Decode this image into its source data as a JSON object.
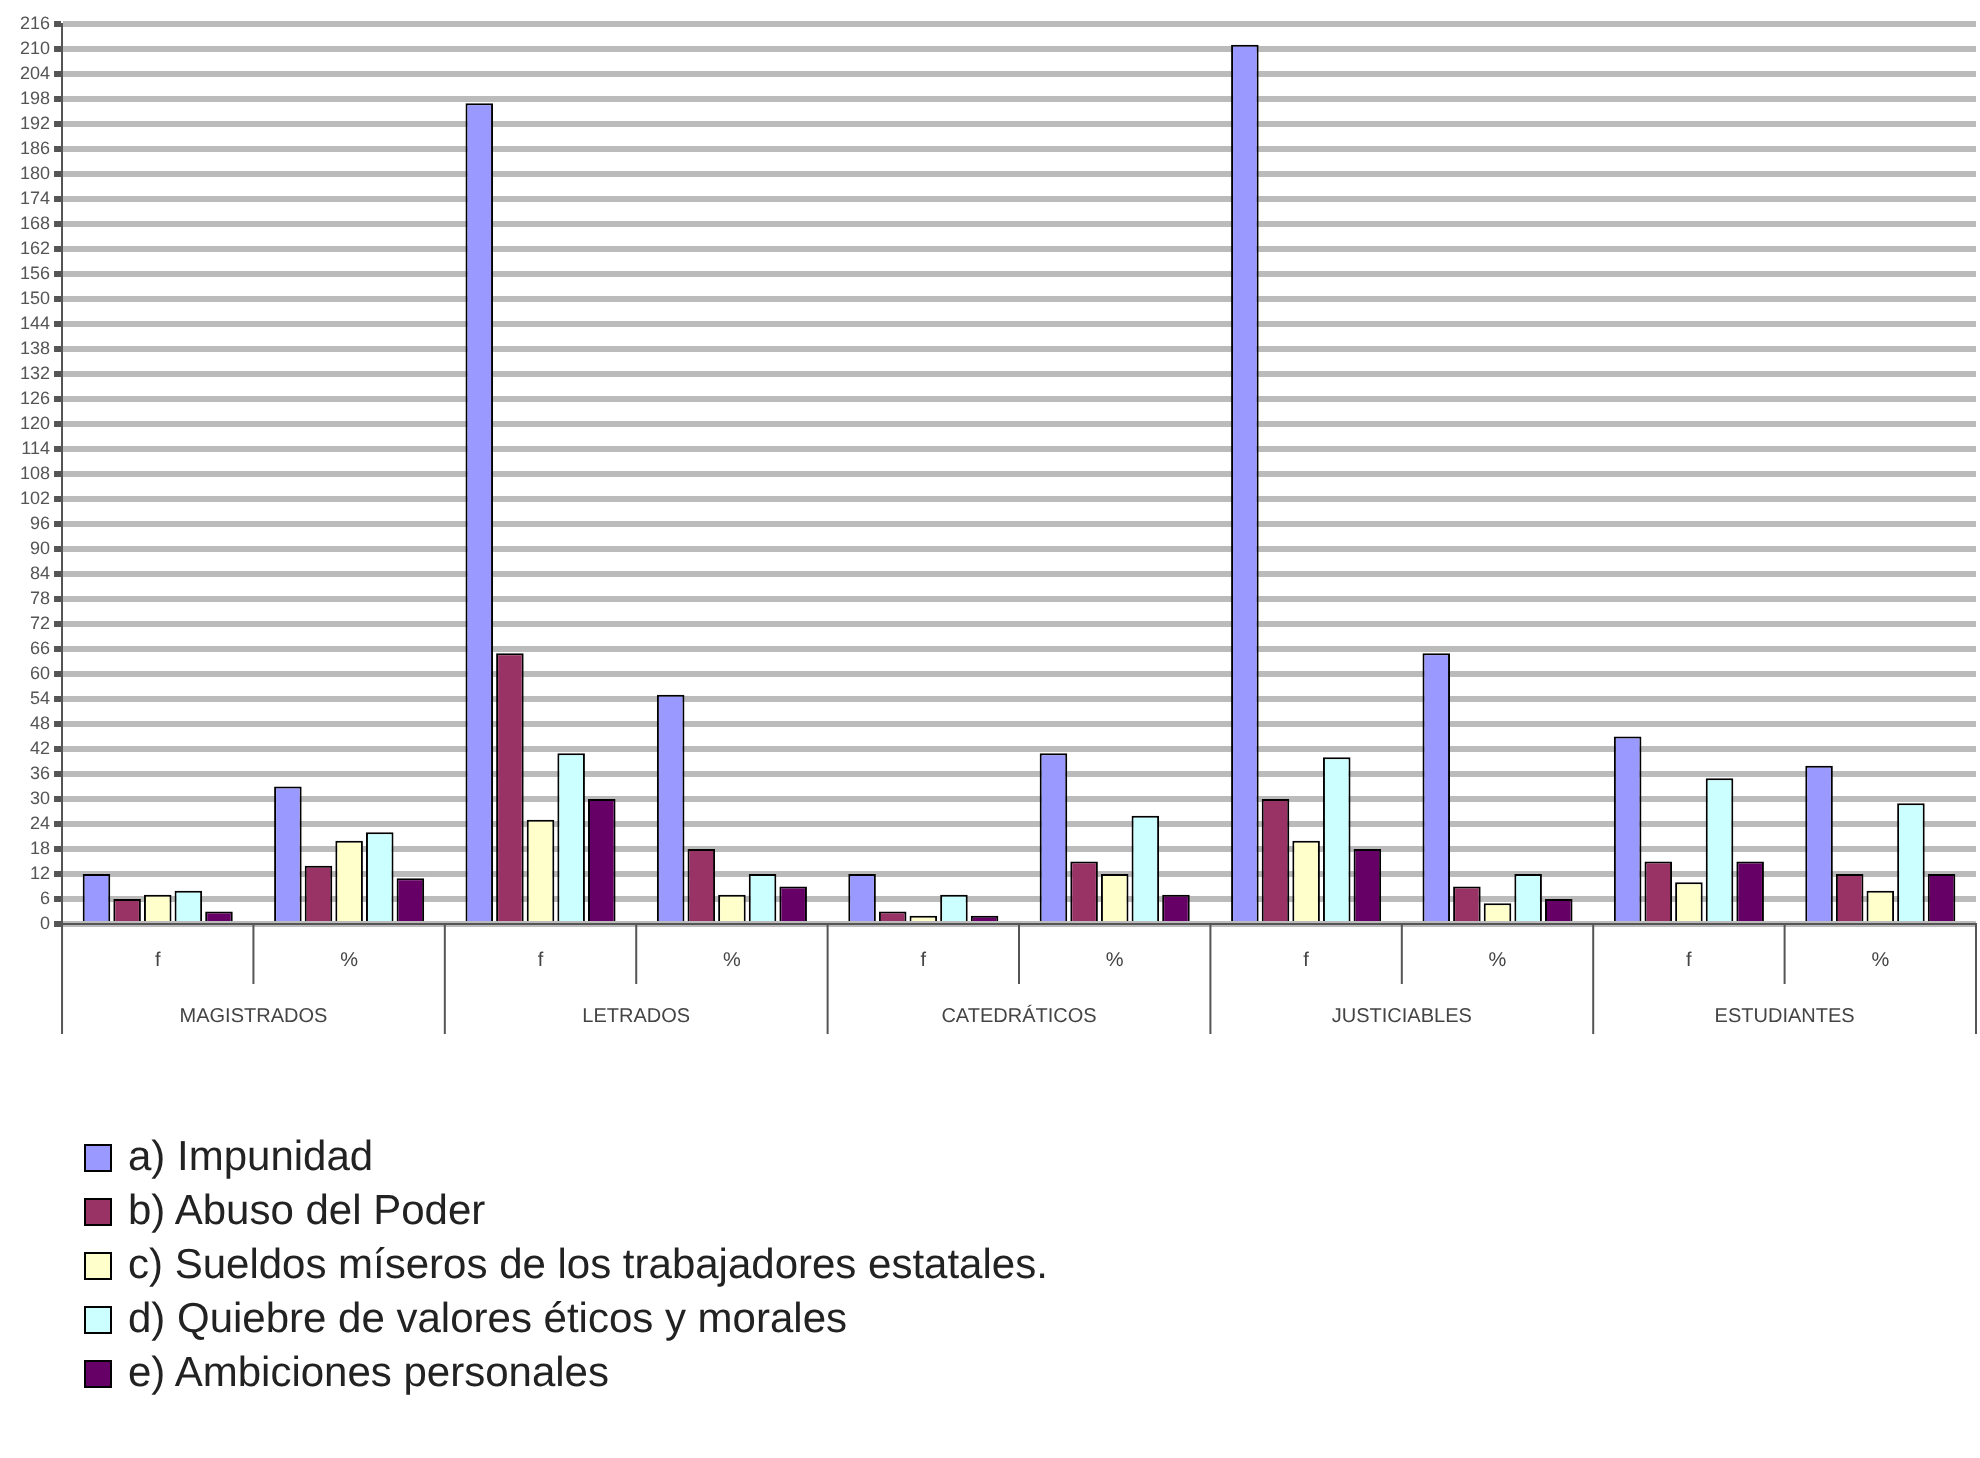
{
  "chart_data": {
    "type": "bar",
    "categories": [
      "f",
      "%",
      "f",
      "%",
      "f",
      "%",
      "f",
      "%",
      "f",
      "%"
    ],
    "annotations": [
      "MAGISTRADOS",
      "LETRADOS",
      "CATEDRÁTICOS",
      "JUSTICIABLES",
      "ESTUDIANTES"
    ],
    "series": [
      {
        "name": "a) Impunidad",
        "color": "#9999ff",
        "values": [
          12,
          33,
          197,
          55,
          12,
          41,
          211,
          65,
          45,
          38
        ]
      },
      {
        "name": "b) Abuso del Poder",
        "color": "#993366",
        "values": [
          6,
          14,
          65,
          18,
          3,
          15,
          30,
          9,
          15,
          12
        ]
      },
      {
        "name": "c) Sueldos míseros de los trabajadores estatales.",
        "color": "#ffffcc",
        "values": [
          7,
          20,
          25,
          7,
          2,
          12,
          20,
          5,
          10,
          8
        ]
      },
      {
        "name": "d) Quiebre de valores éticos y morales",
        "color": "#ccffff",
        "values": [
          8,
          22,
          41,
          12,
          7,
          26,
          40,
          12,
          35,
          29
        ]
      },
      {
        "name": "e) Ambiciones personales",
        "color": "#660066",
        "values": [
          3,
          11,
          30,
          9,
          2,
          7,
          18,
          6,
          15,
          12
        ]
      }
    ],
    "ylim": [
      0,
      216
    ],
    "yticks": [
      0,
      6,
      12,
      18,
      24,
      30,
      36,
      42,
      48,
      54,
      60,
      66,
      72,
      78,
      84,
      90,
      96,
      102,
      108,
      114,
      120,
      126,
      132,
      138,
      144,
      150,
      156,
      162,
      168,
      174,
      180,
      186,
      192,
      198,
      204,
      210,
      216
    ],
    "grid": "y",
    "legend": "bottom"
  }
}
